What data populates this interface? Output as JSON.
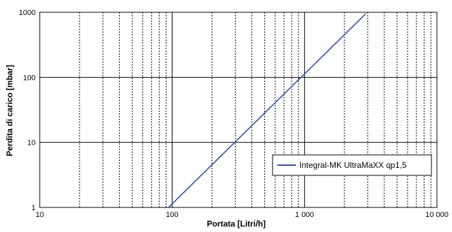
{
  "chart_data": {
    "type": "line",
    "title": "",
    "xlabel": "Portata [Litri/h]",
    "ylabel": "Perdita di carico [mbar]",
    "x_scale": "log",
    "y_scale": "log",
    "xlim": [
      10,
      10000
    ],
    "ylim": [
      1,
      1000
    ],
    "x_ticks": [
      10,
      100,
      1000,
      10000
    ],
    "x_tick_labels": [
      "10",
      "100",
      "1 000",
      "10 000"
    ],
    "y_ticks": [
      1,
      10,
      100,
      1000
    ],
    "y_tick_labels": [
      "1",
      "10",
      "100",
      "1000"
    ],
    "grid": {
      "major": "solid",
      "minor_x": "dotted"
    },
    "legend_position": "inside-right",
    "series": [
      {
        "name": "Integral-MK UltraMaXX qp1,5",
        "color": "#2f4f9f",
        "x": [
          94,
          300,
          1000,
          2900
        ],
        "y": [
          1,
          10.2,
          113,
          950
        ]
      }
    ]
  }
}
